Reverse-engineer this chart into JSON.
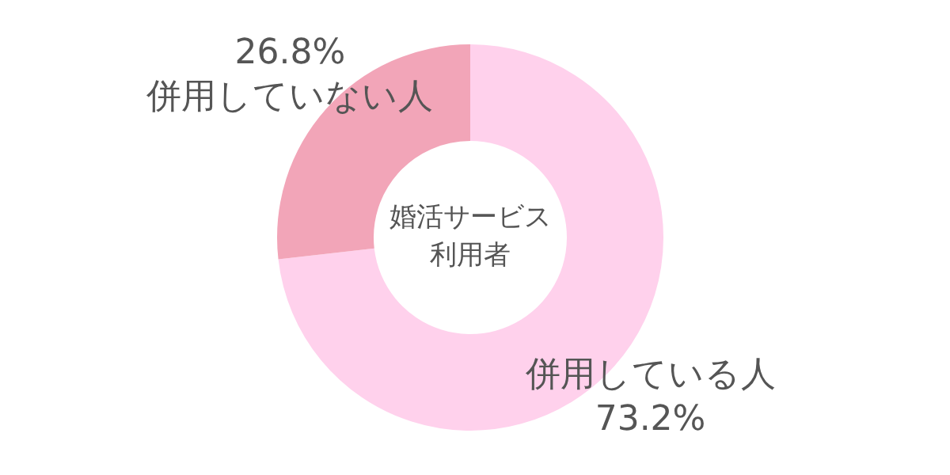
{
  "chart_data": {
    "type": "donut",
    "title": "婚活サービス利用者",
    "categories": [
      "併用している人",
      "併用していない人"
    ],
    "values": [
      73.2,
      26.8
    ],
    "value_labels": [
      "73.2%",
      "26.8%"
    ],
    "colors": [
      "#ffd1ec",
      "#f2a5b8"
    ],
    "legend": false
  }
}
